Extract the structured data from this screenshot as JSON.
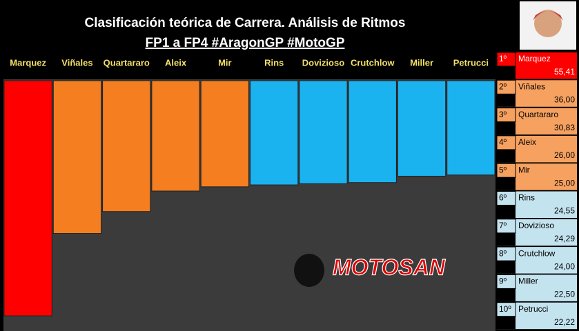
{
  "chart_data": {
    "type": "bar",
    "title": "Clasificación teórica de Carrera. Análisis de Ritmos",
    "subtitle": "FP1 a FP4 #AragonGP #MotoGP",
    "categories": [
      "Marquez",
      "Viñales",
      "Quartararo",
      "Aleix",
      "Mir",
      "Rins",
      "Dovizioso",
      "Crutchlow",
      "Miller",
      "Petrucci"
    ],
    "values": [
      55.41,
      36.0,
      30.83,
      26.0,
      25.0,
      24.55,
      24.29,
      24.0,
      22.5,
      22.22
    ],
    "value_labels": [
      "55,41",
      "36,00",
      "30,83",
      "26,00",
      "25,00",
      "24,55",
      "24,29",
      "24,00",
      "22,50",
      "22,22"
    ],
    "ranks": [
      "1º",
      "2º",
      "3º",
      "4º",
      "5º",
      "6º",
      "7º",
      "8º",
      "9º",
      "10º"
    ],
    "colors": [
      "#ff0000",
      "#f47e20",
      "#f47e20",
      "#f47e20",
      "#f47e20",
      "#1bb2f0",
      "#1bb2f0",
      "#1bb2f0",
      "#1bb2f0",
      "#1bb2f0"
    ],
    "panel_colors": [
      "#ff0000",
      "#f6a160",
      "#f6a160",
      "#f6a160",
      "#f6a160",
      "#c3e3ef",
      "#c3e3ef",
      "#c3e3ef",
      "#c3e3ef",
      "#c3e3ef"
    ],
    "watermark": "MOTOSAN"
  }
}
